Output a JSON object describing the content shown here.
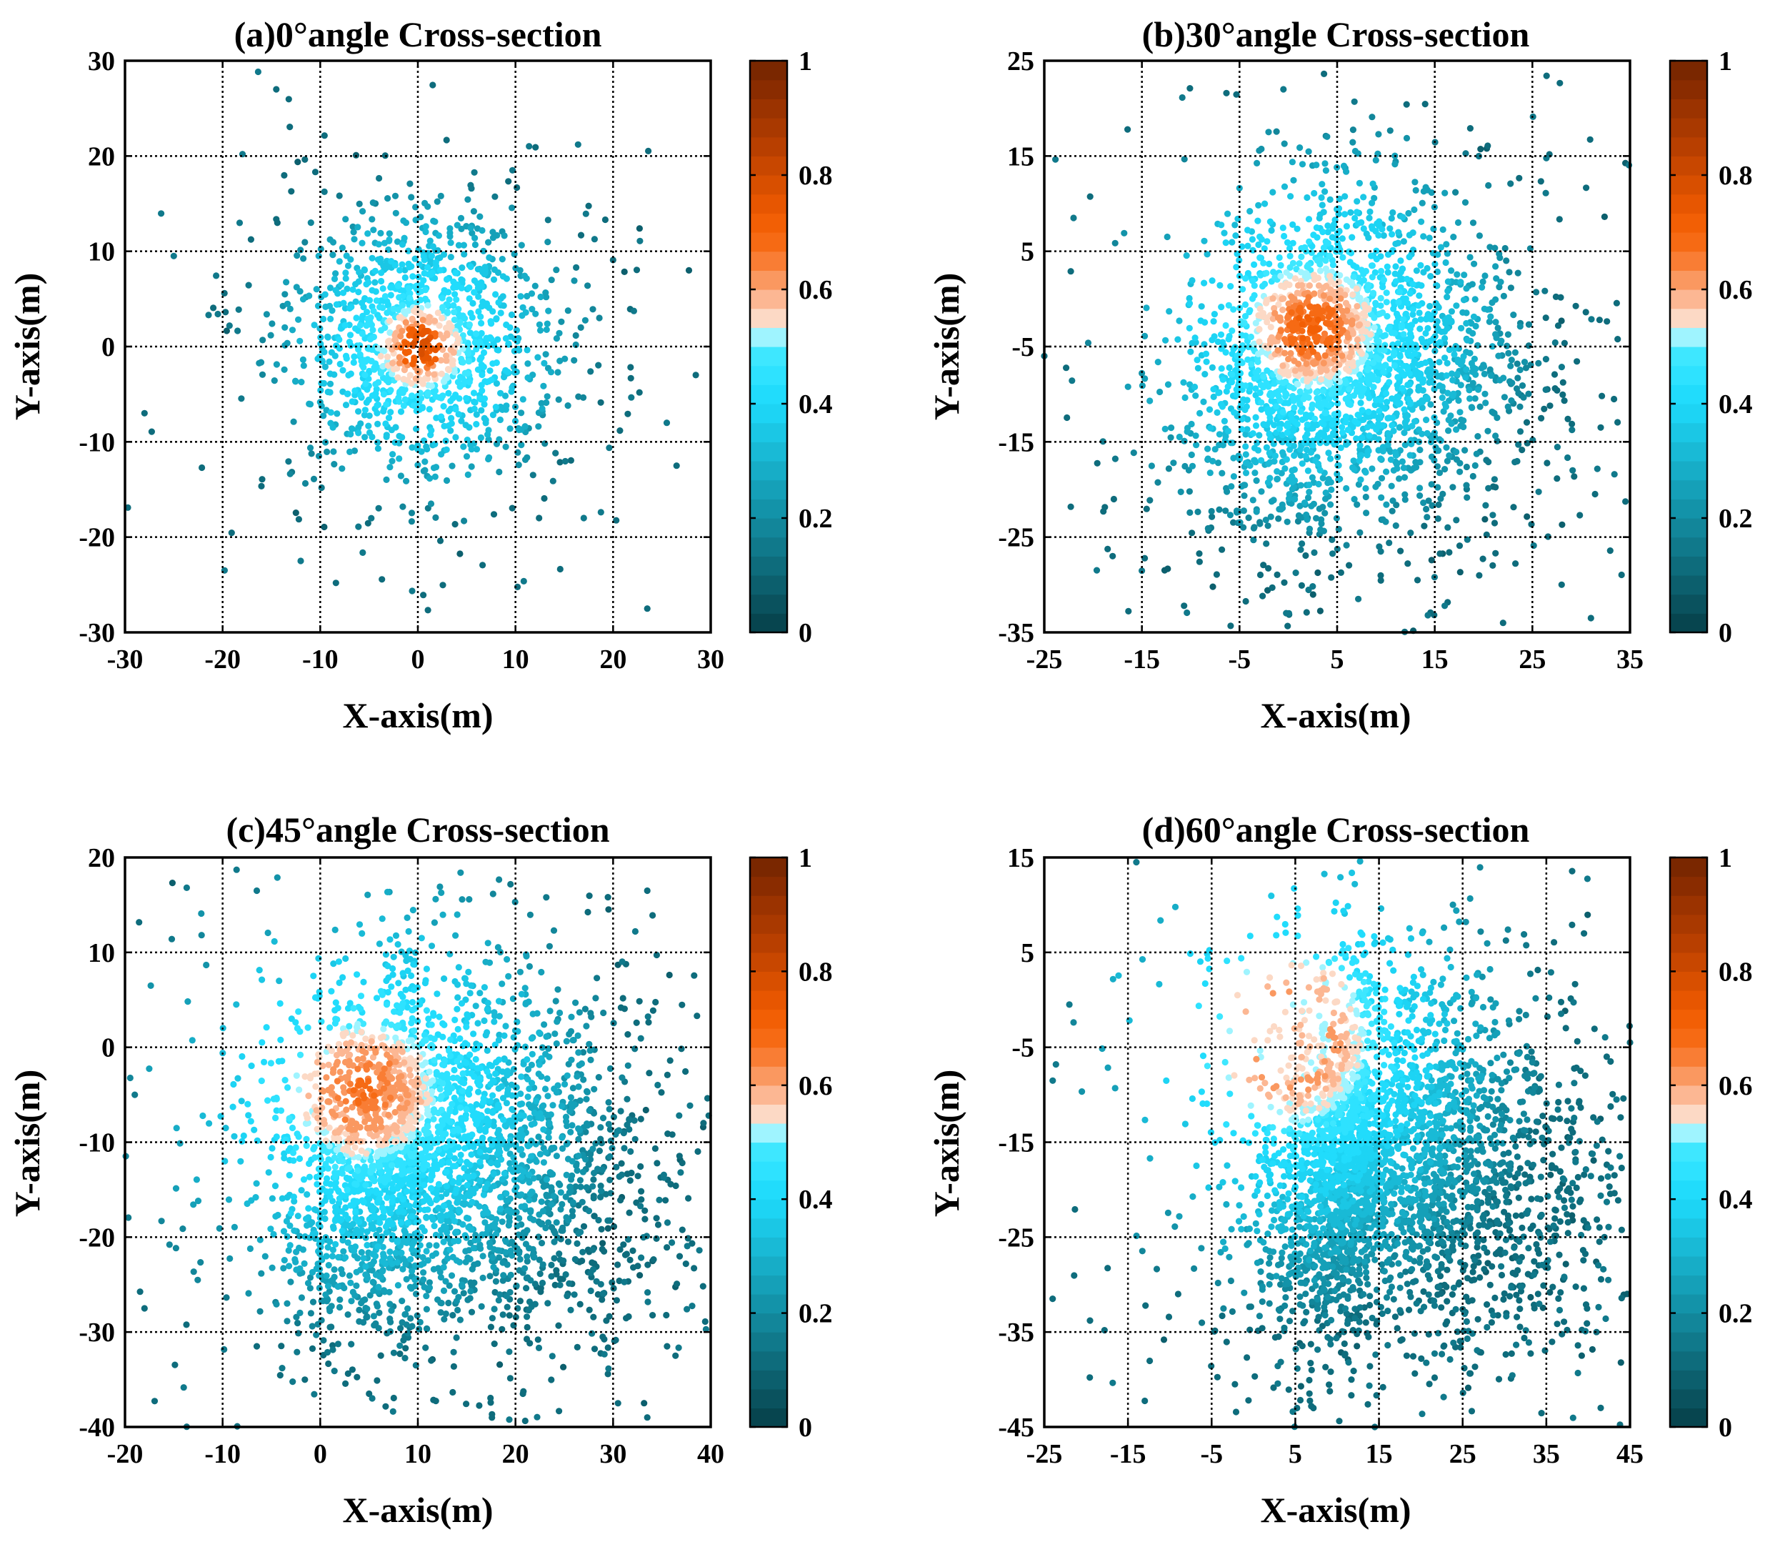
{
  "figure": {
    "colormap": {
      "colors": [
        "#07454f",
        "#0a525e",
        "#0c5f6d",
        "#0e6c7c",
        "#10798b",
        "#12869a",
        "#1393a9",
        "#15a0b8",
        "#17adc7",
        "#19bad6",
        "#1bc7e5",
        "#1dd4f4",
        "#21dcfc",
        "#2ee2ff",
        "#3ee7ff",
        "#9ff4ff",
        "#fcd9c5",
        "#fcb793",
        "#fa9860",
        "#f97d34",
        "#f66a14",
        "#f25f05",
        "#e75601",
        "#d84f00",
        "#c84700",
        "#b83f00",
        "#a93900",
        "#9b3300",
        "#8a2c00",
        "#7a2700"
      ],
      "ticks": [
        0,
        0.2,
        0.4,
        0.6,
        0.8,
        1
      ],
      "tick_labels": [
        "0",
        "0.2",
        "0.4",
        "0.6",
        "0.8",
        "1"
      ]
    }
  },
  "chart_data": [
    {
      "id": "a",
      "type": "scatter",
      "title": "(a)0°angle Cross-section",
      "xlabel": "X-axis(m)",
      "ylabel": "Y-axis(m)",
      "xlim": [
        -30,
        30
      ],
      "ylim": [
        -30,
        30
      ],
      "xticks": [
        -30,
        -20,
        -10,
        0,
        10,
        20,
        30
      ],
      "yticks": [
        -30,
        -20,
        -10,
        0,
        10,
        20,
        30
      ],
      "xtick_labels": [
        "-30",
        "-20",
        "-10",
        "0",
        "10",
        "20",
        "30"
      ],
      "ytick_labels": [
        "-30",
        "-20",
        "-10",
        "0",
        "10",
        "20",
        "30"
      ],
      "grid": true,
      "colorbar": {
        "range": [
          0,
          1
        ],
        "label": ""
      },
      "cloud": {
        "center": [
          0.5,
          0.5
        ],
        "hot_center": [
          0.3,
          0.0
        ],
        "spread": 6.5,
        "n": 1300,
        "max_value": 0.78,
        "tail": [
          0,
          0
        ],
        "core": 2.2
      },
      "sample_points": [
        [
          -14.5,
          27
        ],
        [
          -25,
          9.5
        ],
        [
          -28,
          -7
        ],
        [
          23.5,
          -27.5
        ],
        [
          26.5,
          -12.5
        ],
        [
          -12,
          -22.5
        ],
        [
          17,
          -18
        ],
        [
          25.5,
          -8
        ]
      ]
    },
    {
      "id": "b",
      "type": "scatter",
      "title": "(b)30°angle Cross-section",
      "xlabel": "X-axis(m)",
      "ylabel": "Y-axis(m)",
      "xlim": [
        -25,
        35
      ],
      "ylim": [
        -35,
        25
      ],
      "xticks": [
        -25,
        -15,
        -5,
        5,
        15,
        25,
        35
      ],
      "yticks": [
        -35,
        -25,
        -15,
        -5,
        5,
        15,
        25
      ],
      "xtick_labels": [
        "-25",
        "-15",
        "-5",
        "5",
        "15",
        "25",
        "35"
      ],
      "ytick_labels": [
        "-35",
        "-25",
        "-15",
        "-5",
        "5",
        "15",
        "25"
      ],
      "grid": true,
      "colorbar": {
        "range": [
          0,
          1
        ],
        "label": ""
      },
      "cloud": {
        "center": [
          5,
          -6
        ],
        "hot_center": [
          2.5,
          -3
        ],
        "spread": 8,
        "n": 2600,
        "max_value": 0.72,
        "tail": [
          0.25,
          -0.3
        ],
        "core": 3.2
      },
      "sample_points": [
        [
          -0.5,
          22
        ],
        [
          -22,
          8.5
        ],
        [
          -25,
          -6
        ],
        [
          32,
          -13.5
        ],
        [
          31,
          -33.5
        ],
        [
          22,
          -34
        ],
        [
          28,
          -30
        ],
        [
          -18,
          -27
        ]
      ]
    },
    {
      "id": "c",
      "type": "scatter",
      "title": "(c)45°angle Cross-section",
      "xlabel": "X-axis(m)",
      "ylabel": "Y-axis(m)",
      "xlim": [
        -20,
        40
      ],
      "ylim": [
        -40,
        20
      ],
      "xticks": [
        -20,
        -10,
        0,
        10,
        20,
        30,
        40
      ],
      "yticks": [
        -40,
        -30,
        -20,
        -10,
        0,
        10,
        20
      ],
      "xtick_labels": [
        "-20",
        "-10",
        "0",
        "10",
        "20",
        "30",
        "40"
      ],
      "ytick_labels": [
        "-40",
        "-30",
        "-20",
        "-10",
        "0",
        "10",
        "20"
      ],
      "grid": true,
      "colorbar": {
        "range": [
          0,
          1
        ],
        "label": ""
      },
      "cloud": {
        "center": [
          10,
          -10
        ],
        "hot_center": [
          4.5,
          -4.5
        ],
        "spread": 9,
        "n": 3400,
        "max_value": 0.68,
        "tail": [
          0.45,
          -0.4
        ],
        "core": 3.6
      },
      "sample_points": [
        [
          -6.5,
          16.5
        ],
        [
          -19,
          -5
        ],
        [
          -18,
          -27.5
        ],
        [
          33.5,
          -39
        ],
        [
          5,
          -36.5
        ],
        [
          30.5,
          -37.5
        ],
        [
          33.5,
          16.5
        ],
        [
          -6.5,
          -31.5
        ]
      ]
    },
    {
      "id": "d",
      "type": "scatter",
      "title": "(d)60°angle Cross-section",
      "xlabel": "X-axis(m)",
      "ylabel": "Y-axis(m)",
      "xlim": [
        -25,
        45
      ],
      "ylim": [
        -45,
        15
      ],
      "xticks": [
        -25,
        -15,
        -5,
        5,
        15,
        25,
        35,
        45
      ],
      "yticks": [
        -45,
        -35,
        -25,
        -15,
        -5,
        5,
        15
      ],
      "xtick_labels": [
        "-25",
        "-15",
        "-5",
        "5",
        "15",
        "25",
        "35",
        "45"
      ],
      "ytick_labels": [
        "-45",
        "-35",
        "-25",
        "-15",
        "-5",
        "5",
        "15"
      ],
      "grid": true,
      "colorbar": {
        "range": [
          0,
          1
        ],
        "label": ""
      },
      "cloud": {
        "center": [
          14,
          -15
        ],
        "hot_center": [
          4.5,
          -4
        ],
        "spread": 9.5,
        "n": 3600,
        "max_value": 0.6,
        "tail": [
          0.6,
          -0.55
        ],
        "core": 4.5
      },
      "sample_points": [
        [
          -22,
          -0.5
        ],
        [
          -14,
          14.5
        ],
        [
          45,
          -4.5
        ],
        [
          41.5,
          -43
        ],
        [
          14.5,
          -45
        ],
        [
          39.5,
          7
        ],
        [
          41,
          -35
        ],
        [
          -9,
          -31
        ]
      ]
    }
  ]
}
